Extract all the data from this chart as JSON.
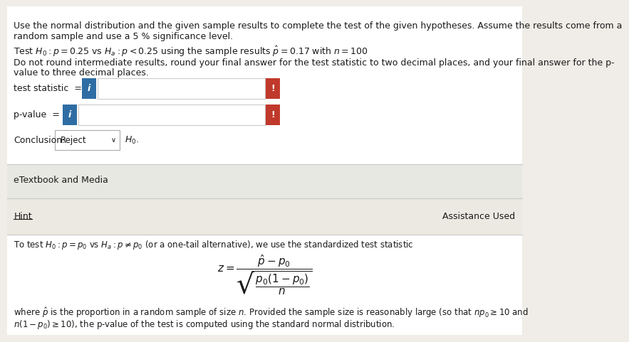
{
  "bg_color": "#f0ede8",
  "white_bg": "#ffffff",
  "line1": "Use the normal distribution and the given sample results to complete the test of the given hypotheses. Assume the results come from a",
  "line2": "random sample and use a 5 % significance level.",
  "line3": "Test $H_0 : p = 0.25$ vs $H_a : p < 0.25$ using the sample results $\\hat{p} = 0.17$ with $n = 100$",
  "line4": "Do not round intermediate results, round your final answer for the test statistic to two decimal places, and your final answer for the p-",
  "line5": "value to three decimal places.",
  "label_stat": "test statistic  =",
  "label_pval": "p-value  =",
  "label_conclusion": "Conclusion:",
  "conclusion_box": "Reject",
  "conclusion_end": "$H_0$.",
  "blue_color": "#2e6da4",
  "red_color": "#c0392b",
  "border_color": "#cccccc",
  "etextbook": "eTextbook and Media",
  "hint": "Hint",
  "assist": "Assistance Used",
  "hint_line": "To test $H_0 : p = p_0$ vs $H_a : p \\neq p_0$ (or a one-tail alternative), we use the standardized test statistic",
  "formula": "$z = \\dfrac{\\hat{p} - p_0}{\\sqrt{\\dfrac{p_0(1-p_0)}{n}}}$",
  "footnote1": "where $\\hat{p}$ is the proportion in a random sample of size $n$. Provided the sample size is reasonably large (so that $np_0 \\geq 10$ and",
  "footnote2": "$n(1 - p_0) \\geq 10$), the p-value of the test is computed using the standard normal distribution.",
  "section_divider_color": "#c8c8c8",
  "select_border": "#aaaaaa",
  "text_color": "#1a1a1a",
  "font_size_main": 9,
  "font_size_small": 8.5
}
